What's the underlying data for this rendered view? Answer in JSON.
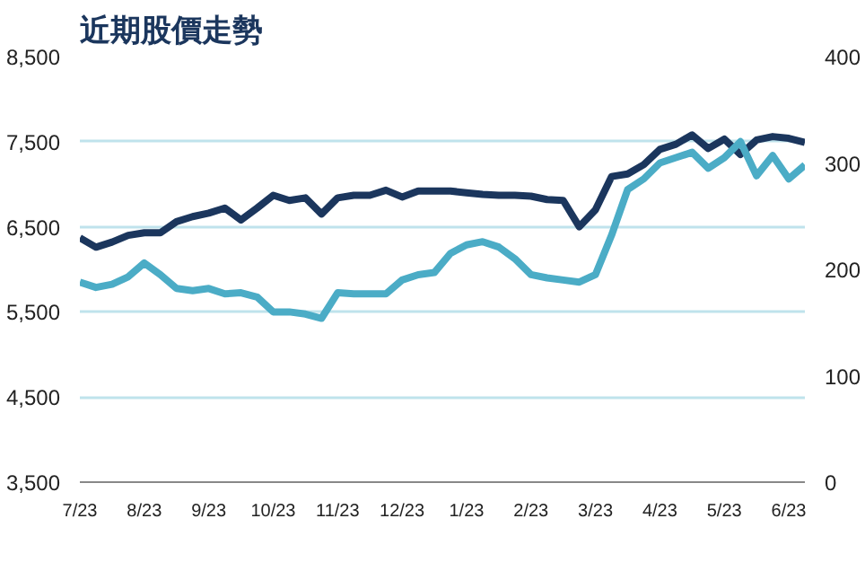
{
  "chart_data": {
    "type": "line",
    "title": "近期股價走勢",
    "categories": [
      "7/23",
      null,
      null,
      null,
      "8/23",
      null,
      null,
      null,
      "9/23",
      null,
      null,
      null,
      "10/23",
      null,
      null,
      null,
      "11/23",
      null,
      null,
      null,
      "12/23",
      null,
      null,
      null,
      "1/23",
      null,
      null,
      null,
      "2/23",
      null,
      null,
      null,
      "3/23",
      null,
      null,
      null,
      "4/23",
      null,
      null,
      null,
      "5/23",
      null,
      null,
      null,
      "6/23",
      null
    ],
    "ylim": [
      3500,
      8500
    ],
    "yticks": [
      {
        "value": 3500,
        "label": "3,500"
      },
      {
        "value": 4500,
        "label": "4,500"
      },
      {
        "value": 5500,
        "label": "5,500"
      },
      {
        "value": 6500,
        "label": "6,500"
      },
      {
        "value": 7500,
        "label": "7,500"
      },
      {
        "value": 8500,
        "label": "8,500"
      }
    ],
    "y2lim": [
      0,
      400
    ],
    "y2ticks": [
      0,
      100,
      200,
      300,
      400
    ],
    "grid": "y",
    "line_style": "solid",
    "series": [
      {
        "color": "#1b365d",
        "values": [
          6370,
          6260,
          6320,
          6400,
          6430,
          6430,
          6560,
          6620,
          6660,
          6720,
          6580,
          6720,
          6870,
          6810,
          6840,
          6650,
          6840,
          6870,
          6870,
          6930,
          6850,
          6920,
          6920,
          6920,
          6900,
          6880,
          6870,
          6870,
          6860,
          6820,
          6810,
          6500,
          6700,
          7090,
          7120,
          7230,
          7410,
          7470,
          7580,
          7420,
          7530,
          7350,
          7520,
          7560,
          7540,
          7490
        ]
      },
      {
        "color": "#4bacc6",
        "axis": "y2",
        "values": [
          188,
          183,
          186,
          193,
          206,
          195,
          182,
          180,
          182,
          177,
          178,
          174,
          160,
          160,
          158,
          154,
          178,
          177,
          177,
          177,
          190,
          195,
          197,
          215,
          223,
          226,
          221,
          210,
          195,
          192,
          190,
          188,
          195,
          232,
          275,
          285,
          300,
          305,
          310,
          295,
          305,
          320,
          288,
          307,
          285,
          298
        ]
      }
    ]
  }
}
